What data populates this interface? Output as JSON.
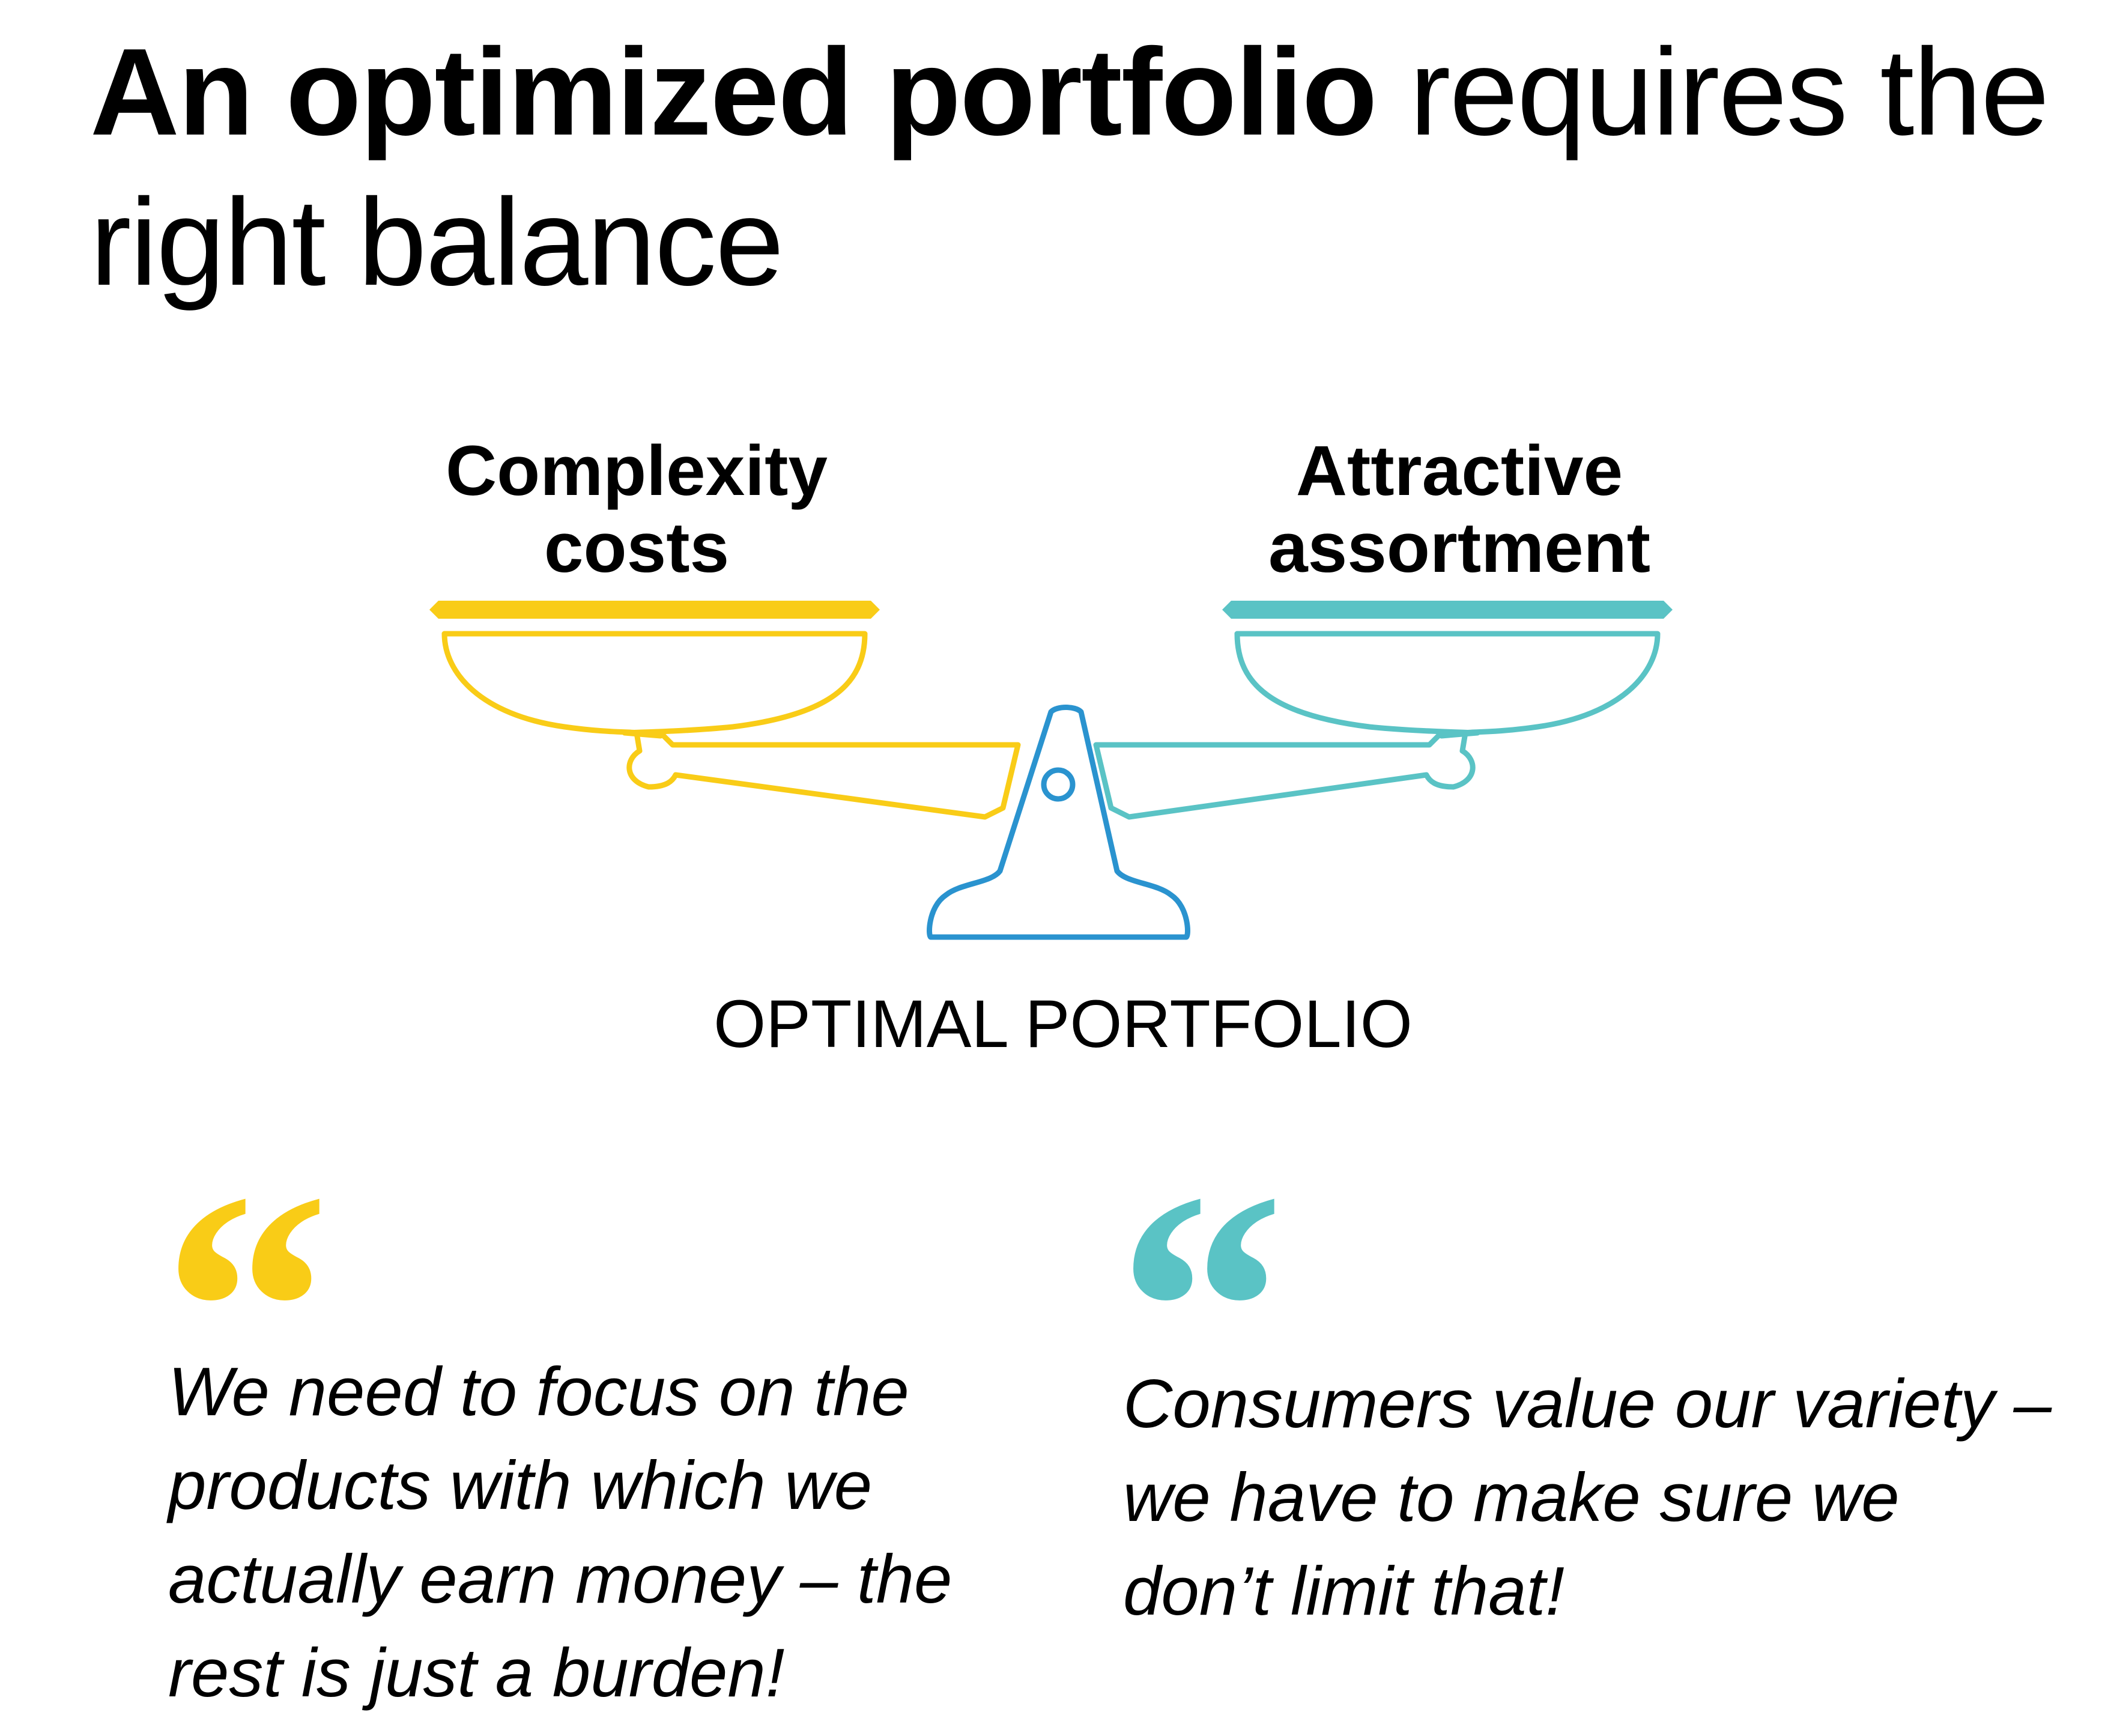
{
  "header": {
    "title_bold": "An optimized portfolio",
    "title_rest": "requires the right balance"
  },
  "scale": {
    "left_label": "Complexity costs",
    "right_label": "Attractive assortment",
    "caption": "OPTIMAL PORTFOLIO",
    "colors": {
      "left_pan": "#F9CC17",
      "right_pan": "#5AC3C5",
      "stand": "#2A93CF"
    }
  },
  "quotes": [
    {
      "mark": "“",
      "text": "We need to focus on the products with which we actually earn money – the rest is just a burden!",
      "color": "#F9CC17"
    },
    {
      "mark": "“",
      "text": "Consumers value our variety – we have to make sure we don’t limit that!",
      "color": "#5AC3C5"
    }
  ]
}
